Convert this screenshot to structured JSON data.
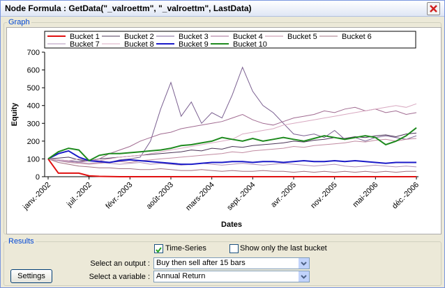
{
  "window": {
    "title": "Node Formula : GetData(\"_valroettm\", \"_valroettm\", LastData)",
    "graph_label": "Graph",
    "results_label": "Results"
  },
  "chart_data": {
    "type": "line",
    "y_label": "Equity",
    "x_label": "Dates",
    "categories": [
      "janv.-2002",
      null,
      null,
      null,
      "juil.-2002",
      null,
      null,
      null,
      "févr.-2003",
      null,
      null,
      null,
      "août-2003",
      null,
      null,
      null,
      "mars-2004",
      null,
      null,
      null,
      "sept.-2004",
      null,
      null,
      null,
      "avr.-2005",
      null,
      null,
      null,
      "nov.-2005",
      null,
      null,
      null,
      "mai-2006",
      null,
      null,
      null,
      "déc.-2006"
    ],
    "ylim": [
      0,
      700
    ],
    "yticks": [
      0,
      100,
      200,
      300,
      400,
      500,
      600,
      700
    ],
    "grid": false,
    "series": [
      {
        "name": "Bucket 1",
        "color": "#e01010",
        "values": [
          100,
          20,
          20,
          20,
          5,
          2,
          1,
          0,
          0,
          0,
          0,
          0,
          0,
          0,
          0,
          0,
          0,
          0,
          0,
          0,
          0,
          0,
          0,
          0,
          0,
          0,
          0,
          0,
          0,
          0,
          0,
          0,
          0,
          0,
          0,
          0,
          0
        ]
      },
      {
        "name": "Bucket 2",
        "color": "#4a3456",
        "values": [
          100,
          105,
          110,
          95,
          90,
          100,
          105,
          110,
          115,
          120,
          125,
          130,
          135,
          140,
          150,
          145,
          160,
          155,
          170,
          165,
          175,
          180,
          185,
          190,
          200,
          195,
          205,
          210,
          220,
          215,
          225,
          220,
          230,
          235,
          225,
          240,
          245
        ]
      },
      {
        "name": "Bucket 3",
        "color": "#7a5f90",
        "values": [
          100,
          95,
          90,
          85,
          95,
          90,
          80,
          95,
          100,
          110,
          200,
          380,
          530,
          340,
          420,
          300,
          360,
          330,
          460,
          615,
          480,
          400,
          360,
          300,
          240,
          230,
          240,
          220,
          260,
          210,
          220,
          200,
          220,
          230,
          220,
          210,
          230
        ]
      },
      {
        "name": "Bucket 4",
        "color": "#a06a90",
        "values": [
          100,
          90,
          85,
          80,
          90,
          100,
          130,
          150,
          170,
          200,
          220,
          240,
          250,
          270,
          280,
          290,
          300,
          310,
          330,
          350,
          320,
          300,
          290,
          310,
          330,
          340,
          350,
          370,
          360,
          380,
          390,
          370,
          380,
          360,
          370,
          350,
          360
        ]
      },
      {
        "name": "Bucket 5",
        "color": "#c08aa0",
        "values": [
          100,
          90,
          80,
          75,
          70,
          75,
          80,
          85,
          80,
          90,
          95,
          100,
          105,
          110,
          115,
          120,
          125,
          130,
          140,
          135,
          145,
          150,
          155,
          160,
          170,
          165,
          175,
          180,
          185,
          190,
          200,
          195,
          205,
          210,
          200,
          210,
          215
        ]
      },
      {
        "name": "Bucket 6",
        "color": "#a07080",
        "values": [
          100,
          80,
          70,
          60,
          55,
          50,
          50,
          45,
          45,
          40,
          40,
          45,
          40,
          35,
          35,
          40,
          35,
          30,
          35,
          30,
          30,
          35,
          30,
          30,
          25,
          30,
          25,
          30,
          25,
          30,
          25,
          30,
          25,
          30,
          25,
          30,
          30
        ]
      },
      {
        "name": "Bucket 7",
        "color": "#b090b8",
        "values": [
          100,
          90,
          85,
          80,
          75,
          80,
          75,
          70,
          75,
          80,
          70,
          75,
          70,
          65,
          70,
          75,
          70,
          65,
          70,
          75,
          70,
          65,
          70,
          75,
          70,
          65,
          60,
          65,
          70,
          60,
          55,
          60,
          65,
          60,
          55,
          60,
          55
        ]
      },
      {
        "name": "Bucket 8",
        "color": "#d8a8c0",
        "values": [
          100,
          95,
          90,
          100,
          95,
          90,
          100,
          110,
          115,
          120,
          130,
          140,
          150,
          160,
          170,
          180,
          190,
          200,
          210,
          240,
          250,
          260,
          270,
          290,
          300,
          310,
          320,
          330,
          340,
          350,
          360,
          370,
          380,
          390,
          400,
          390,
          410
        ]
      },
      {
        "name": "Bucket 9",
        "color": "#1a1ac8",
        "values": [
          100,
          130,
          145,
          110,
          90,
          85,
          80,
          90,
          95,
          90,
          85,
          80,
          75,
          70,
          70,
          75,
          80,
          80,
          85,
          85,
          80,
          85,
          85,
          80,
          85,
          90,
          85,
          85,
          90,
          85,
          90,
          85,
          80,
          75,
          80,
          80,
          80
        ]
      },
      {
        "name": "Bucket 10",
        "color": "#1e8a1e",
        "values": [
          100,
          140,
          160,
          150,
          90,
          120,
          130,
          130,
          135,
          140,
          145,
          150,
          160,
          175,
          180,
          190,
          200,
          220,
          210,
          200,
          215,
          200,
          210,
          220,
          210,
          200,
          215,
          230,
          220,
          210,
          220,
          230,
          220,
          180,
          200,
          230,
          275
        ]
      }
    ]
  },
  "results": {
    "time_series": {
      "label": "Time-Series",
      "checked": true
    },
    "last_bucket": {
      "label": "Show only the last bucket",
      "checked": false
    },
    "output": {
      "label": "Select an output :",
      "value": "Buy then sell after 15 bars"
    },
    "variable": {
      "label": "Select a variable :",
      "value": "Annual Return"
    },
    "settings": "Settings"
  }
}
